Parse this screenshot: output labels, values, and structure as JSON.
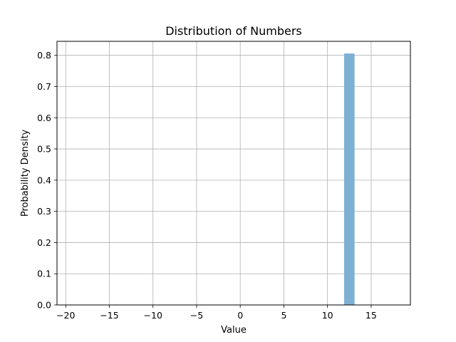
{
  "chart_data": {
    "type": "bar",
    "title": "Distribution of Numbers",
    "xlabel": "Value",
    "ylabel": "Probability Density",
    "xlim": [
      -21,
      19.5
    ],
    "ylim": [
      0,
      0.845
    ],
    "x_ticks": [
      -20,
      -15,
      -10,
      -5,
      0,
      5,
      10,
      15
    ],
    "x_tick_labels": [
      "−20",
      "−15",
      "−10",
      "−5",
      "0",
      "5",
      "10",
      "15"
    ],
    "y_ticks": [
      0.0,
      0.1,
      0.2,
      0.3,
      0.4,
      0.5,
      0.6,
      0.7,
      0.8
    ],
    "y_tick_labels": [
      "0.0",
      "0.1",
      "0.2",
      "0.3",
      "0.4",
      "0.5",
      "0.6",
      "0.7",
      "0.8"
    ],
    "grid": true,
    "bars": [
      {
        "x_start": 11.9,
        "x_end": 13.1,
        "value": 0.806
      }
    ],
    "colors": {
      "bar": "#7eb0d5",
      "grid": "#b0b0b0",
      "axes": "#000000"
    }
  }
}
